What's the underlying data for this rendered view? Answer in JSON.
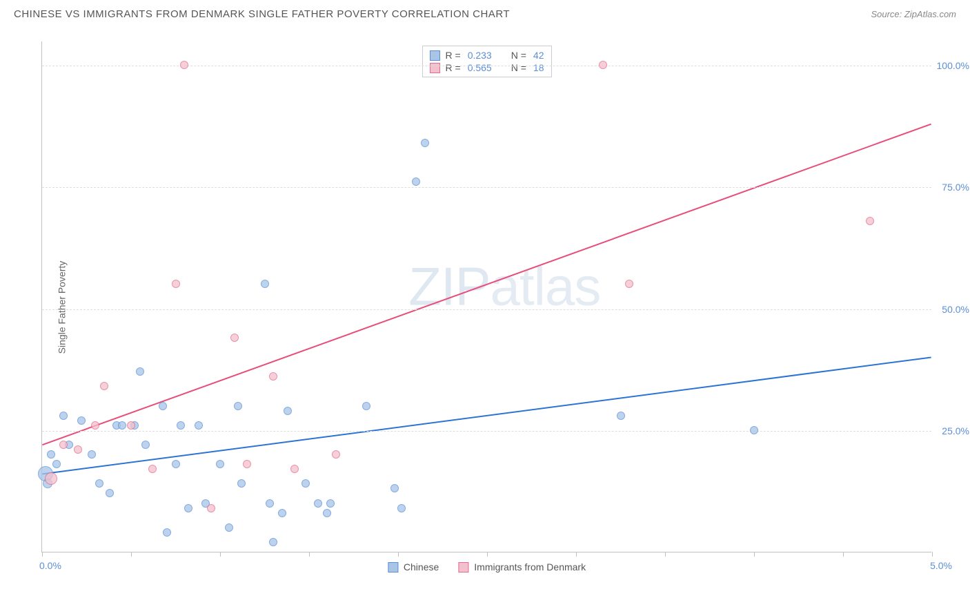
{
  "header": {
    "title": "CHINESE VS IMMIGRANTS FROM DENMARK SINGLE FATHER POVERTY CORRELATION CHART",
    "source": "Source: ZipAtlas.com"
  },
  "chart": {
    "type": "scatter",
    "ylabel": "Single Father Poverty",
    "watermark": "ZIPatlas",
    "xlim": [
      0,
      5.0
    ],
    "ylim": [
      0,
      105
    ],
    "background_color": "#ffffff",
    "grid_color": "#dddddd",
    "axis_color": "#c0c0c0",
    "xticks": [
      {
        "v": 0.0,
        "label": "0.0%"
      },
      {
        "v": 0.5
      },
      {
        "v": 1.0
      },
      {
        "v": 1.5
      },
      {
        "v": 2.0
      },
      {
        "v": 2.5
      },
      {
        "v": 3.0
      },
      {
        "v": 3.5
      },
      {
        "v": 4.0
      },
      {
        "v": 4.5
      },
      {
        "v": 5.0,
        "label": "5.0%"
      }
    ],
    "yticks": [
      {
        "v": 25,
        "label": "25.0%"
      },
      {
        "v": 50,
        "label": "50.0%"
      },
      {
        "v": 75,
        "label": "75.0%"
      },
      {
        "v": 100,
        "label": "100.0%"
      }
    ],
    "series": [
      {
        "name": "Chinese",
        "marker_fill": "#a8c5e8",
        "marker_stroke": "#5b8fd6",
        "marker_opacity": 0.75,
        "marker_size_default": 12,
        "trend_color": "#2b73d4",
        "trend_width": 2,
        "trend": {
          "x1": 0.0,
          "y1": 16,
          "x2": 5.0,
          "y2": 40
        },
        "points": [
          {
            "x": 0.02,
            "y": 16,
            "r": 22
          },
          {
            "x": 0.03,
            "y": 14,
            "r": 14
          },
          {
            "x": 0.05,
            "y": 20
          },
          {
            "x": 0.08,
            "y": 18
          },
          {
            "x": 0.12,
            "y": 28
          },
          {
            "x": 0.15,
            "y": 22
          },
          {
            "x": 0.22,
            "y": 27
          },
          {
            "x": 0.28,
            "y": 20
          },
          {
            "x": 0.32,
            "y": 14
          },
          {
            "x": 0.38,
            "y": 12
          },
          {
            "x": 0.42,
            "y": 26
          },
          {
            "x": 0.45,
            "y": 26
          },
          {
            "x": 0.52,
            "y": 26
          },
          {
            "x": 0.55,
            "y": 37
          },
          {
            "x": 0.58,
            "y": 22
          },
          {
            "x": 0.68,
            "y": 30
          },
          {
            "x": 0.75,
            "y": 18
          },
          {
            "x": 0.78,
            "y": 26
          },
          {
            "x": 0.82,
            "y": 9
          },
          {
            "x": 0.88,
            "y": 26
          },
          {
            "x": 0.7,
            "y": 4
          },
          {
            "x": 0.92,
            "y": 10
          },
          {
            "x": 1.0,
            "y": 18
          },
          {
            "x": 1.05,
            "y": 5
          },
          {
            "x": 1.1,
            "y": 30
          },
          {
            "x": 1.12,
            "y": 14
          },
          {
            "x": 1.25,
            "y": 55
          },
          {
            "x": 1.28,
            "y": 10
          },
          {
            "x": 1.3,
            "y": 2
          },
          {
            "x": 1.35,
            "y": 8
          },
          {
            "x": 1.38,
            "y": 29
          },
          {
            "x": 1.48,
            "y": 14
          },
          {
            "x": 1.55,
            "y": 10
          },
          {
            "x": 1.62,
            "y": 10
          },
          {
            "x": 1.6,
            "y": 8
          },
          {
            "x": 1.82,
            "y": 30
          },
          {
            "x": 1.98,
            "y": 13
          },
          {
            "x": 2.02,
            "y": 9
          },
          {
            "x": 2.15,
            "y": 84
          },
          {
            "x": 2.1,
            "y": 76
          },
          {
            "x": 3.25,
            "y": 28
          },
          {
            "x": 4.0,
            "y": 25
          }
        ]
      },
      {
        "name": "Immigrants from Denmark",
        "marker_fill": "#f2c1cd",
        "marker_stroke": "#e76b8f",
        "marker_opacity": 0.75,
        "marker_size_default": 12,
        "trend_color": "#e84d7a",
        "trend_width": 2,
        "trend": {
          "x1": 0.0,
          "y1": 22,
          "x2": 5.0,
          "y2": 88
        },
        "points": [
          {
            "x": 0.05,
            "y": 15,
            "r": 18
          },
          {
            "x": 0.12,
            "y": 22
          },
          {
            "x": 0.2,
            "y": 21
          },
          {
            "x": 0.3,
            "y": 26
          },
          {
            "x": 0.35,
            "y": 34
          },
          {
            "x": 0.5,
            "y": 26
          },
          {
            "x": 0.62,
            "y": 17
          },
          {
            "x": 0.75,
            "y": 55
          },
          {
            "x": 0.8,
            "y": 100
          },
          {
            "x": 0.95,
            "y": 9
          },
          {
            "x": 1.08,
            "y": 44
          },
          {
            "x": 1.15,
            "y": 18
          },
          {
            "x": 1.3,
            "y": 36
          },
          {
            "x": 1.42,
            "y": 17
          },
          {
            "x": 1.65,
            "y": 20
          },
          {
            "x": 3.15,
            "y": 100
          },
          {
            "x": 3.3,
            "y": 55
          },
          {
            "x": 4.65,
            "y": 68
          }
        ]
      }
    ],
    "legend_top": {
      "r_label": "R =",
      "n_label": "N =",
      "rows": [
        {
          "swatch_fill": "#a8c5e8",
          "swatch_stroke": "#5b8fd6",
          "r": "0.233",
          "n": "42"
        },
        {
          "swatch_fill": "#f2c1cd",
          "swatch_stroke": "#e76b8f",
          "r": "0.565",
          "n": "18"
        }
      ]
    },
    "legend_bottom": [
      {
        "swatch_fill": "#a8c5e8",
        "swatch_stroke": "#5b8fd6",
        "label": "Chinese"
      },
      {
        "swatch_fill": "#f2c1cd",
        "swatch_stroke": "#e76b8f",
        "label": "Immigrants from Denmark"
      }
    ]
  }
}
